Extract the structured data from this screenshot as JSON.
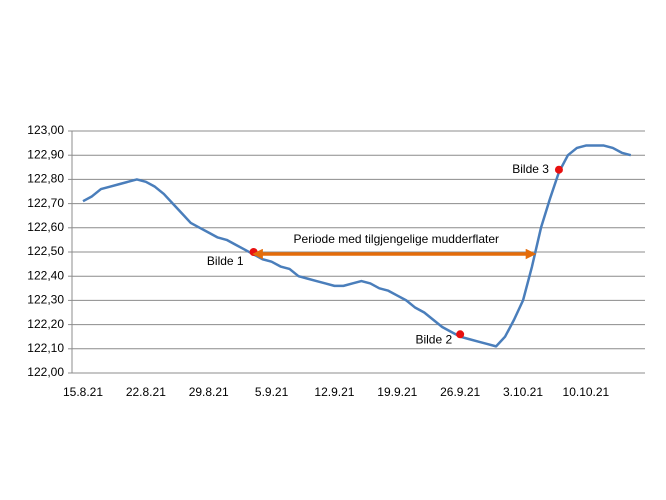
{
  "chart_data": {
    "type": "line",
    "x": [
      "15.8.21",
      "16.8.21",
      "17.8.21",
      "18.8.21",
      "19.8.21",
      "20.8.21",
      "21.8.21",
      "22.8.21",
      "23.8.21",
      "24.8.21",
      "25.8.21",
      "26.8.21",
      "27.8.21",
      "28.8.21",
      "29.8.21",
      "30.8.21",
      "31.8.21",
      "1.9.21",
      "2.9.21",
      "3.9.21",
      "4.9.21",
      "5.9.21",
      "6.9.21",
      "7.9.21",
      "8.9.21",
      "9.9.21",
      "10.9.21",
      "11.9.21",
      "12.9.21",
      "13.9.21",
      "14.9.21",
      "15.9.21",
      "16.9.21",
      "17.9.21",
      "18.9.21",
      "19.9.21",
      "20.9.21",
      "21.9.21",
      "22.9.21",
      "23.9.21",
      "24.9.21",
      "25.9.21",
      "26.9.21",
      "27.9.21",
      "28.9.21",
      "29.9.21",
      "30.9.21",
      "1.10.21",
      "2.10.21",
      "3.10.21",
      "4.10.21",
      "5.10.21",
      "6.10.21",
      "7.10.21",
      "8.10.21",
      "9.10.21",
      "10.10.21",
      "11.10.21",
      "12.10.21",
      "13.10.21",
      "14.10.21",
      "15.10.21"
    ],
    "values": [
      122.71,
      122.73,
      122.76,
      122.77,
      122.78,
      122.79,
      122.8,
      122.79,
      122.77,
      122.74,
      122.7,
      122.66,
      122.62,
      122.6,
      122.58,
      122.56,
      122.55,
      122.53,
      122.51,
      122.49,
      122.47,
      122.46,
      122.44,
      122.43,
      122.4,
      122.39,
      122.38,
      122.37,
      122.36,
      122.36,
      122.37,
      122.38,
      122.37,
      122.35,
      122.34,
      122.32,
      122.3,
      122.27,
      122.25,
      122.22,
      122.19,
      122.17,
      122.15,
      122.14,
      122.13,
      122.12,
      122.11,
      122.15,
      122.22,
      122.3,
      122.44,
      122.6,
      122.72,
      122.83,
      122.9,
      122.93,
      122.94,
      122.94,
      122.94,
      122.93,
      122.91,
      122.9
    ],
    "color": "#4a7ebb",
    "ylim": [
      122,
      123
    ],
    "yticks": [
      {
        "value": 122,
        "label": "122,00"
      },
      {
        "value": 122.1,
        "label": "122,10"
      },
      {
        "value": 122.2,
        "label": "122,20"
      },
      {
        "value": 122.3,
        "label": "122,30"
      },
      {
        "value": 122.4,
        "label": "122,40"
      },
      {
        "value": 122.5,
        "label": "122,50"
      },
      {
        "value": 122.6,
        "label": "122,60"
      },
      {
        "value": 122.7,
        "label": "122,70"
      },
      {
        "value": 122.8,
        "label": "122,80"
      },
      {
        "value": 122.9,
        "label": "122,90"
      },
      {
        "value": 123,
        "label": "123,00"
      }
    ],
    "xticks": [
      "15.8.21",
      "22.8.21",
      "29.8.21",
      "5.9.21",
      "12.9.21",
      "19.9.21",
      "26.9.21",
      "3.10.21",
      "10.10.21"
    ],
    "grid": true,
    "markers": [
      {
        "label": "Bilde 1",
        "x": "3.9.21",
        "value": 122.5,
        "color": "#e81010"
      },
      {
        "label": "Bilde 2",
        "x": "26.9.21",
        "value": 122.16,
        "color": "#e81010"
      },
      {
        "label": "Bilde 3",
        "x": "7.10.21",
        "value": 122.84,
        "color": "#e81010"
      }
    ],
    "annotation": {
      "text": "Periode med tilgjengelige mudderflater",
      "color": "#e46c0a"
    }
  }
}
